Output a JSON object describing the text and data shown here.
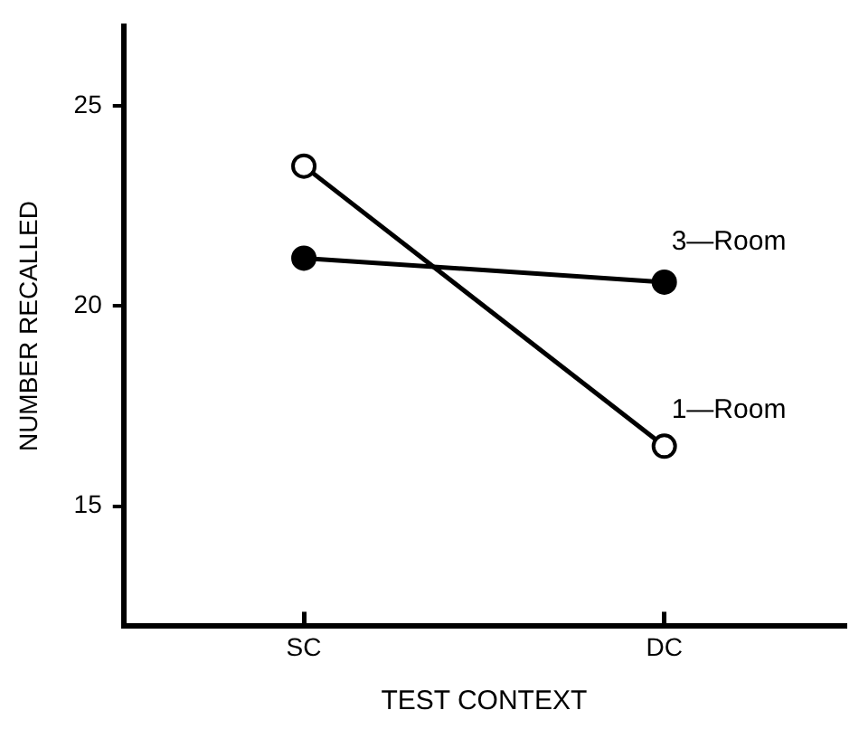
{
  "chart_data": {
    "type": "line",
    "xlabel": "TEST CONTEXT",
    "ylabel": "NUMBER RECALLED",
    "categories": [
      "SC",
      "DC"
    ],
    "ylim": [
      12,
      27
    ],
    "yticks": [
      15,
      20,
      25
    ],
    "grid": false,
    "legend": false,
    "marker": "circle",
    "line_style": "solid",
    "series": [
      {
        "name": "1—Room",
        "color": "#000000",
        "values": [
          23.5,
          16.5
        ]
      },
      {
        "name": "3—Room",
        "color": "#000000",
        "values": [
          21.2,
          20.6
        ]
      }
    ]
  }
}
